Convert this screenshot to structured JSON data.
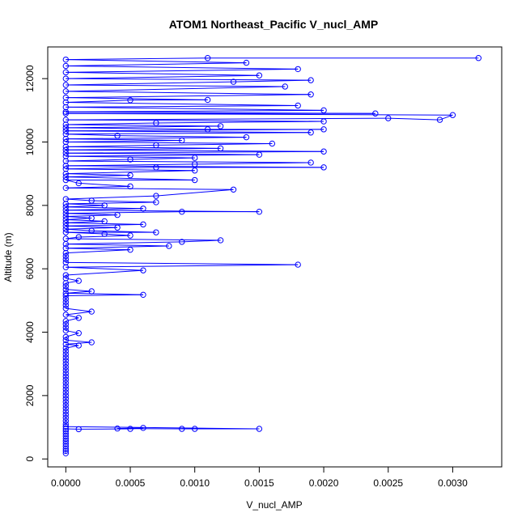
{
  "chart_data": {
    "type": "scatter",
    "title": "ATOM1 Northeast_Pacific V_nucl_AMP",
    "xlabel": "V_nucl_AMP",
    "ylabel": "Altitude (m)",
    "xlim": [
      -0.00014,
      0.00338
    ],
    "ylim": [
      -250,
      13000
    ],
    "xticks": [
      "0.0000",
      "0.0005",
      "0.0010",
      "0.0015",
      "0.0020",
      "0.0025",
      "0.0030"
    ],
    "xtick_values": [
      0,
      0.0005,
      0.001,
      0.0015,
      0.002,
      0.0025,
      0.003
    ],
    "yticks": [
      "0",
      "2000",
      "4000",
      "6000",
      "8000",
      "10000",
      "12000"
    ],
    "ytick_values": [
      0,
      2000,
      4000,
      6000,
      8000,
      10000,
      12000
    ],
    "grid": false,
    "series_color": "#0000FF",
    "marker": "open-circle",
    "connected_by_lines": true,
    "series": [
      {
        "points": [
          [
            0.0,
            180
          ],
          [
            0.0,
            250
          ],
          [
            0.0,
            320
          ],
          [
            0.0,
            400
          ],
          [
            0.0,
            480
          ],
          [
            0.0,
            560
          ],
          [
            0.0,
            640
          ],
          [
            0.0,
            720
          ],
          [
            0.0,
            800
          ],
          [
            0.0,
            880
          ],
          [
            0.0,
            950
          ],
          [
            0.0001,
            940
          ],
          [
            0.0005,
            950
          ],
          [
            0.0006,
            980
          ],
          [
            0.0004,
            960
          ],
          [
            0.0009,
            950
          ],
          [
            0.001,
            950
          ],
          [
            0.0015,
            950
          ],
          [
            0.0,
            1020
          ],
          [
            0.0,
            1100
          ],
          [
            0.0,
            1200
          ],
          [
            0.0,
            1300
          ],
          [
            0.0,
            1400
          ],
          [
            0.0,
            1500
          ],
          [
            0.0,
            1600
          ],
          [
            0.0,
            1700
          ],
          [
            0.0,
            1800
          ],
          [
            0.0,
            1900
          ],
          [
            0.0,
            2000
          ],
          [
            0.0,
            2100
          ],
          [
            0.0,
            2200
          ],
          [
            0.0,
            2300
          ],
          [
            0.0,
            2400
          ],
          [
            0.0,
            2500
          ],
          [
            0.0,
            2600
          ],
          [
            0.0,
            2700
          ],
          [
            0.0,
            2800
          ],
          [
            0.0,
            2900
          ],
          [
            0.0,
            3000
          ],
          [
            0.0,
            3100
          ],
          [
            0.0,
            3200
          ],
          [
            0.0,
            3300
          ],
          [
            0.0,
            3400
          ],
          [
            0.0,
            3500
          ],
          [
            0.0001,
            3580
          ],
          [
            0.0,
            3620
          ],
          [
            0.0002,
            3680
          ],
          [
            0.0,
            3750
          ],
          [
            0.0,
            3850
          ],
          [
            0.0001,
            3970
          ],
          [
            0.0,
            4050
          ],
          [
            0.0,
            4150
          ],
          [
            0.0,
            4250
          ],
          [
            0.0,
            4350
          ],
          [
            0.0001,
            4450
          ],
          [
            0.0,
            4550
          ],
          [
            0.0002,
            4650
          ],
          [
            0.0,
            4750
          ],
          [
            0.0,
            4850
          ],
          [
            0.0,
            4950
          ],
          [
            0.0,
            5050
          ],
          [
            0.0,
            5150
          ],
          [
            0.0006,
            5180
          ],
          [
            0.0,
            5230
          ],
          [
            0.0002,
            5290
          ],
          [
            0.0,
            5350
          ],
          [
            0.0,
            5450
          ],
          [
            0.0,
            5550
          ],
          [
            0.0001,
            5620
          ],
          [
            0.0,
            5700
          ],
          [
            0.0,
            5800
          ],
          [
            0.0006,
            5950
          ],
          [
            0.0,
            6050
          ],
          [
            0.0018,
            6130
          ],
          [
            0.0,
            6200
          ],
          [
            0.0,
            6300
          ],
          [
            0.0,
            6400
          ],
          [
            0.0,
            6500
          ],
          [
            0.0005,
            6600
          ],
          [
            0.0,
            6650
          ],
          [
            0.0008,
            6720
          ],
          [
            0.0,
            6780
          ],
          [
            0.0009,
            6850
          ],
          [
            0.0012,
            6900
          ],
          [
            0.0,
            6950
          ],
          [
            0.0001,
            7000
          ],
          [
            0.0005,
            7050
          ],
          [
            0.0003,
            7100
          ],
          [
            0.0,
            7150
          ],
          [
            0.0007,
            7150
          ],
          [
            0.0002,
            7200
          ],
          [
            0.0,
            7250
          ],
          [
            0.0004,
            7300
          ],
          [
            0.0,
            7350
          ],
          [
            0.0006,
            7400
          ],
          [
            0.0,
            7450
          ],
          [
            0.0003,
            7500
          ],
          [
            0.0,
            7550
          ],
          [
            0.0002,
            7600
          ],
          [
            0.0,
            7650
          ],
          [
            0.0004,
            7700
          ],
          [
            0.0,
            7750
          ],
          [
            0.0009,
            7800
          ],
          [
            0.0015,
            7800
          ],
          [
            0.0,
            7850
          ],
          [
            0.0006,
            7900
          ],
          [
            0.0,
            7950
          ],
          [
            0.0003,
            8000
          ],
          [
            0.0,
            8050
          ],
          [
            0.0007,
            8100
          ],
          [
            0.0002,
            8150
          ],
          [
            0.0,
            8200
          ],
          [
            0.0007,
            8300
          ],
          [
            0.0013,
            8500
          ],
          [
            0.0,
            8550
          ],
          [
            0.0005,
            8600
          ],
          [
            0.0001,
            8700
          ],
          [
            0.0,
            8800
          ],
          [
            0.001,
            8800
          ],
          [
            0.0,
            8900
          ],
          [
            0.0005,
            8950
          ],
          [
            0.0,
            9000
          ],
          [
            0.001,
            9100
          ],
          [
            0.0,
            9150
          ],
          [
            0.0007,
            9200
          ],
          [
            0.002,
            9200
          ],
          [
            0.0,
            9250
          ],
          [
            0.001,
            9300
          ],
          [
            0.0019,
            9350
          ],
          [
            0.0,
            9400
          ],
          [
            0.0005,
            9450
          ],
          [
            0.001,
            9500
          ],
          [
            0.0,
            9550
          ],
          [
            0.0015,
            9600
          ],
          [
            0.0,
            9650
          ],
          [
            0.002,
            9700
          ],
          [
            0.0,
            9750
          ],
          [
            0.0012,
            9800
          ],
          [
            0.0,
            9850
          ],
          [
            0.0007,
            9900
          ],
          [
            0.0016,
            9950
          ],
          [
            0.0,
            10000
          ],
          [
            0.0009,
            10050
          ],
          [
            0.0,
            10100
          ],
          [
            0.0014,
            10150
          ],
          [
            0.0004,
            10200
          ],
          [
            0.0,
            10250
          ],
          [
            0.0019,
            10300
          ],
          [
            0.0,
            10350
          ],
          [
            0.002,
            10400
          ],
          [
            0.0011,
            10400
          ],
          [
            0.0,
            10450
          ],
          [
            0.0012,
            10500
          ],
          [
            0.0,
            10550
          ],
          [
            0.0007,
            10600
          ],
          [
            0.002,
            10650
          ],
          [
            0.0,
            10700
          ],
          [
            0.0025,
            10750
          ],
          [
            0.0029,
            10700
          ],
          [
            0.003,
            10850
          ],
          [
            0.0,
            10900
          ],
          [
            0.0024,
            10900
          ],
          [
            0.0,
            10950
          ],
          [
            0.002,
            11000
          ],
          [
            0.0,
            11100
          ],
          [
            0.0018,
            11150
          ],
          [
            0.0,
            11250
          ],
          [
            0.0005,
            11320
          ],
          [
            0.0011,
            11330
          ],
          [
            0.0,
            11400
          ],
          [
            0.0019,
            11500
          ],
          [
            0.0,
            11600
          ],
          [
            0.0017,
            11750
          ],
          [
            0.0,
            11800
          ],
          [
            0.0013,
            11900
          ],
          [
            0.0019,
            11950
          ],
          [
            0.0,
            12000
          ],
          [
            0.0015,
            12100
          ],
          [
            0.0,
            12200
          ],
          [
            0.0018,
            12300
          ],
          [
            0.0,
            12400
          ],
          [
            0.0014,
            12500
          ],
          [
            0.0,
            12600
          ],
          [
            0.0011,
            12650
          ],
          [
            0.0032,
            12650
          ]
        ]
      }
    ]
  }
}
